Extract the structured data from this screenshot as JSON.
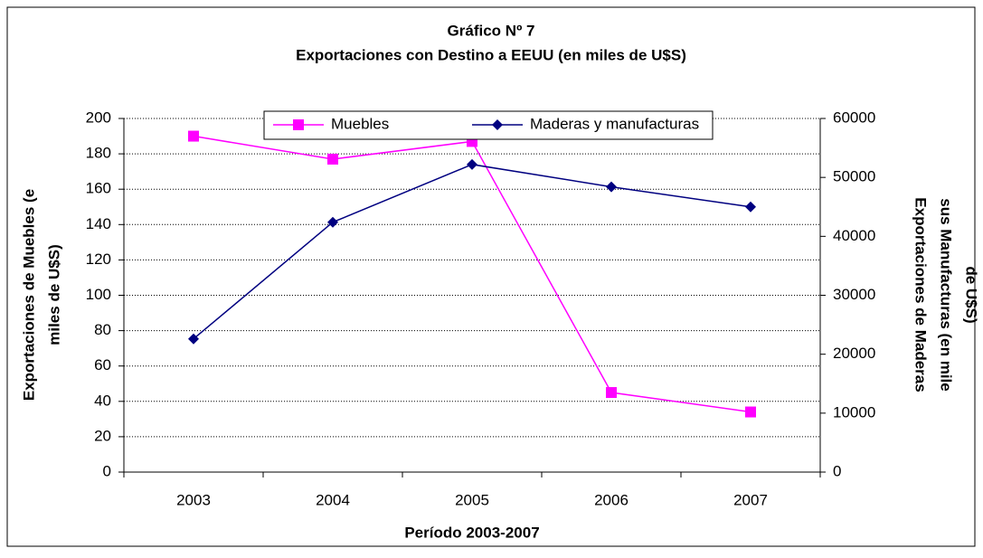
{
  "chart_data": {
    "type": "line",
    "title": "Gráfico Nº 7",
    "subtitle": "Exportaciones con Destino a EEUU (en miles de U$S)",
    "x_label": "Período 2003-2007",
    "y_label": [
      "Exportaciones de Muebles (e",
      "miles de U$S)"
    ],
    "y2_label": [
      "Exportaciones de Maderas",
      "sus Manufacturas (en mile",
      "de U$S)"
    ],
    "categories": [
      "2003",
      "2004",
      "2005",
      "2006",
      "2007"
    ],
    "series": [
      {
        "name": "Muebles",
        "color": "#ff00ff",
        "marker": "square",
        "values": [
          190,
          177,
          187,
          45,
          34
        ]
      },
      {
        "name": "Maderas y manufacturas",
        "color": "#000080",
        "marker": "diamond",
        "axis": "y2",
        "values": [
          22600,
          42400,
          52200,
          48400,
          45000
        ]
      }
    ],
    "ylim": [
      0,
      200
    ],
    "yticks": [
      0,
      20,
      40,
      60,
      80,
      100,
      120,
      140,
      160,
      180,
      200
    ],
    "y2lim": [
      0,
      60000
    ],
    "y2ticks": [
      0,
      10000,
      20000,
      30000,
      40000,
      50000,
      60000
    ],
    "grid": true,
    "legend": "top"
  }
}
